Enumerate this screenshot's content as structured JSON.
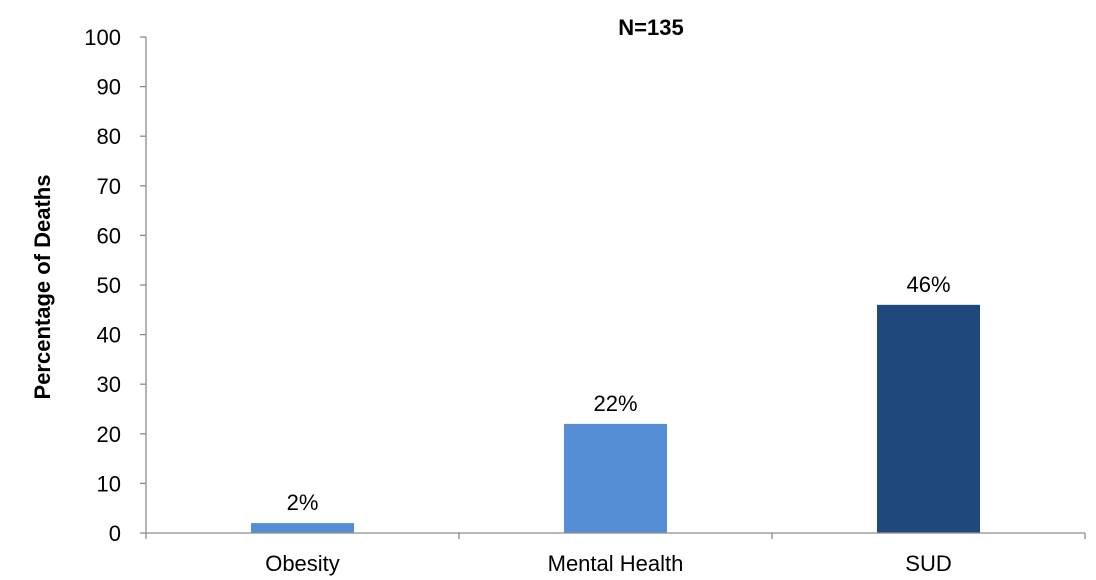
{
  "chart_data": {
    "type": "bar",
    "title": "N=135",
    "ylabel": "Percentage of Deaths",
    "xlabel": "",
    "categories": [
      "Obesity",
      "Mental Health",
      "SUD"
    ],
    "values": [
      2,
      22,
      46
    ],
    "data_labels": [
      "2%",
      "22%",
      "46%"
    ],
    "bar_colors": [
      "#558ed5",
      "#558ed5",
      "#1f497d"
    ],
    "ylim": [
      0,
      100
    ],
    "yticks": [
      0,
      10,
      20,
      30,
      40,
      50,
      60,
      70,
      80,
      90,
      100
    ],
    "grid": false,
    "legend": "none"
  }
}
